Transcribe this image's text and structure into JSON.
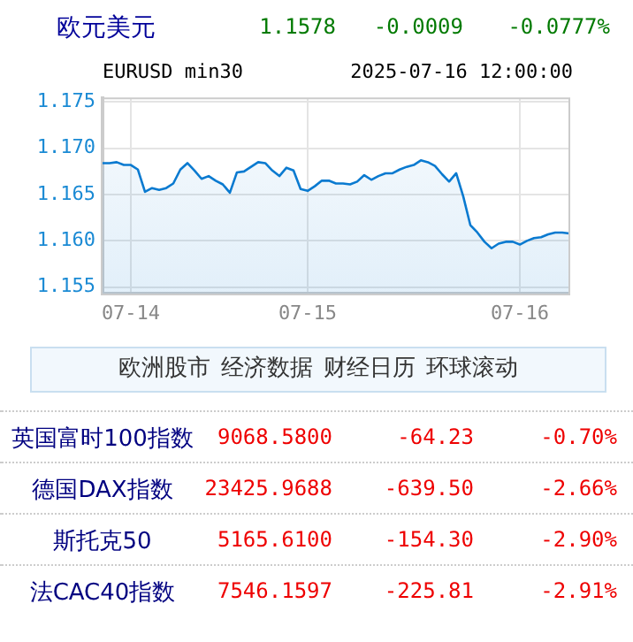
{
  "chart_data": [
    {
      "type": "other",
      "title": "欧元美元",
      "annotations": [
        "1.1578",
        "-0.0009",
        "-0.0777%"
      ]
    },
    {
      "type": "area",
      "title": "EURUSD min30",
      "annotations": [
        "2025-07-16 12:00:00"
      ],
      "categories": [
        null,
        null,
        null,
        null,
        "07-14",
        null,
        null,
        null,
        null,
        null,
        null,
        null,
        null,
        null,
        null,
        null,
        null,
        null,
        null,
        null,
        null,
        null,
        null,
        null,
        null,
        null,
        null,
        null,
        null,
        "07-15",
        null,
        null,
        null,
        null,
        null,
        null,
        null,
        null,
        null,
        null,
        null,
        null,
        null,
        null,
        null,
        null,
        null,
        null,
        null,
        null,
        null,
        null,
        null,
        null,
        null,
        null,
        null,
        null,
        null,
        "07-16",
        null,
        null,
        null,
        null,
        null,
        null,
        null
      ],
      "series": [
        {
          "color": "#0a7ad0",
          "values": [
            1.1684,
            1.1684,
            1.1685,
            1.1682,
            1.1682,
            1.1677,
            1.1653,
            1.1657,
            1.1655,
            1.1657,
            1.1662,
            1.1677,
            1.1684,
            1.1676,
            1.1667,
            1.167,
            1.1665,
            1.1661,
            1.1652,
            1.1674,
            1.1675,
            1.168,
            1.1685,
            1.1684,
            1.1676,
            1.167,
            1.1679,
            1.1676,
            1.1656,
            1.1654,
            1.1659,
            1.1665,
            1.1665,
            1.1662,
            1.1662,
            1.1661,
            1.1664,
            1.1671,
            1.1666,
            1.167,
            1.1673,
            1.1673,
            1.1677,
            1.168,
            1.1682,
            1.1687,
            1.1685,
            1.1681,
            1.1672,
            1.1664,
            1.1673,
            1.1648,
            1.1617,
            1.1609,
            1.1599,
            1.1592,
            1.1597,
            1.1599,
            1.1599,
            1.1596,
            1.16,
            1.1603,
            1.1604,
            1.1607,
            1.1609,
            1.1609,
            1.1608
          ]
        }
      ],
      "ylim": [
        1.1543,
        1.1754
      ],
      "yticks": [
        {
          "value": 1.155,
          "label": "1.155"
        },
        {
          "value": 1.16,
          "label": "1.160"
        },
        {
          "value": 1.165,
          "label": "1.165"
        },
        {
          "value": 1.17,
          "label": "1.170"
        },
        {
          "value": 1.175,
          "label": "1.175"
        }
      ],
      "grid": true,
      "line_style": "solid",
      "marker": "none",
      "legend": false
    },
    {
      "type": "other",
      "annotations": [
        "欧洲股市",
        "经济数据",
        "财经日历",
        "环球滚动",
        "英国富时100指数",
        "9068.5800",
        "-64.23",
        "-0.70%",
        "德国DAX指数",
        "23425.9688",
        "-639.50",
        "-2.66%",
        "斯托克50",
        "5165.6100",
        "-154.30",
        "-2.90%",
        "法CAC40指数",
        "7546.1597",
        "-225.81",
        "-2.91%"
      ]
    }
  ]
}
